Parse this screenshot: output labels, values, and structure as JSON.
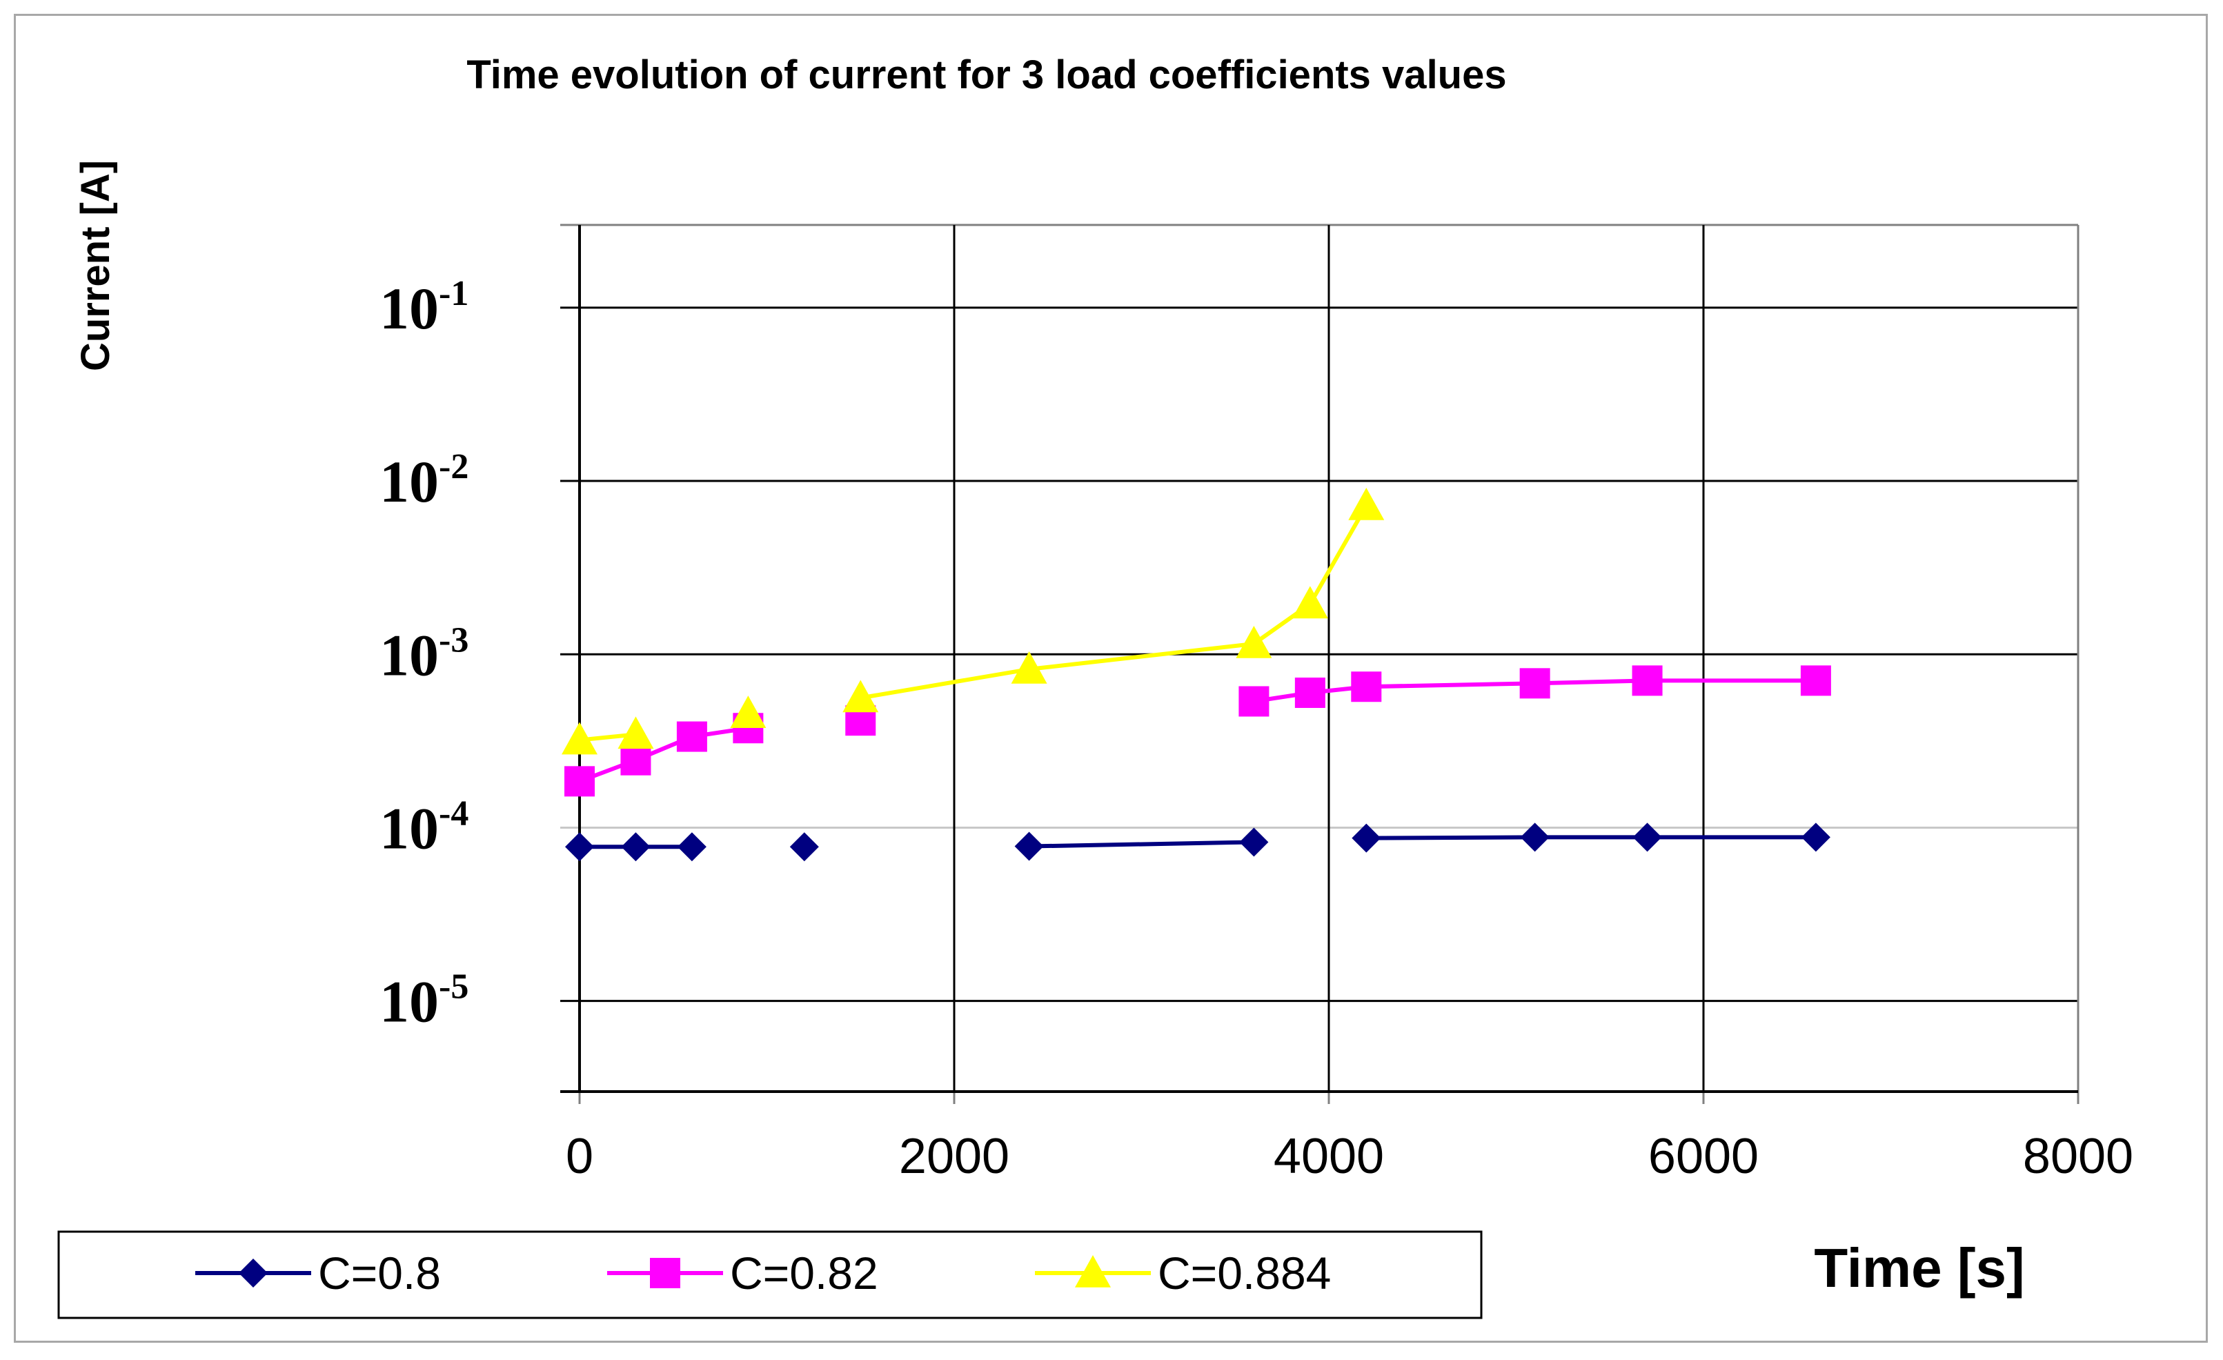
{
  "chart_data": {
    "type": "line",
    "title": "Time evolution of current for 3 load coefficients values",
    "xlabel": "Time [s]",
    "ylabel": "Current [A]",
    "xscale": "linear",
    "yscale": "log",
    "xlim": [
      0,
      8000
    ],
    "ylim": [
      3e-06,
      0.3
    ],
    "x_ticks": [
      "0",
      "2000",
      "4000",
      "6000",
      "8000"
    ],
    "x_tick_values": [
      0,
      2000,
      4000,
      6000,
      8000
    ],
    "y_ticks": [
      {
        "value": 0.1,
        "base": "10",
        "exp": "-1"
      },
      {
        "value": 0.01,
        "base": "10",
        "exp": "-2"
      },
      {
        "value": 0.001,
        "base": "10",
        "exp": "-3"
      },
      {
        "value": 0.0001,
        "base": "10",
        "exp": "-4"
      },
      {
        "value": 1e-05,
        "base": "10",
        "exp": "-5"
      }
    ],
    "grid": true,
    "legend_position": "bottom-left",
    "series": [
      {
        "name": "C=0.8",
        "color": "#000080",
        "marker": "diamond",
        "points": [
          [
            0,
            7.75e-05
          ],
          [
            300,
            7.75e-05
          ],
          [
            600,
            7.75e-05
          ],
          [
            1200,
            7.75e-05
          ],
          [
            2400,
            7.8e-05
          ],
          [
            3600,
            8.25e-05
          ],
          [
            4200,
            8.7e-05
          ],
          [
            5100,
            8.8e-05
          ],
          [
            5700,
            8.8e-05
          ],
          [
            6600,
            8.8e-05
          ]
        ],
        "segments": [
          [
            0,
            2
          ],
          [
            4,
            5
          ],
          [
            6,
            9
          ]
        ]
      },
      {
        "name": "C=0.82",
        "color": "#ff00ff",
        "marker": "square",
        "points": [
          [
            0,
            0.000185
          ],
          [
            300,
            0.000245
          ],
          [
            600,
            0.000335
          ],
          [
            900,
            0.000375
          ],
          [
            1500,
            0.000415
          ],
          [
            3600,
            0.000535
          ],
          [
            3900,
            0.0006
          ],
          [
            4200,
            0.00065
          ],
          [
            5100,
            0.00068
          ],
          [
            5700,
            0.000705
          ],
          [
            6600,
            0.000705
          ]
        ],
        "segments": [
          [
            0,
            3
          ],
          [
            5,
            10
          ]
        ]
      },
      {
        "name": "C=0.884",
        "color": "#ffff00",
        "marker": "triangle",
        "points": [
          [
            0,
            0.00032
          ],
          [
            300,
            0.000345
          ],
          [
            900,
            0.000455
          ],
          [
            1500,
            0.00056
          ],
          [
            2400,
            0.00082
          ],
          [
            3600,
            0.00115
          ],
          [
            3900,
            0.00195
          ],
          [
            4200,
            0.0072
          ]
        ],
        "segments": [
          [
            0,
            1
          ],
          [
            3,
            7
          ]
        ]
      }
    ]
  }
}
